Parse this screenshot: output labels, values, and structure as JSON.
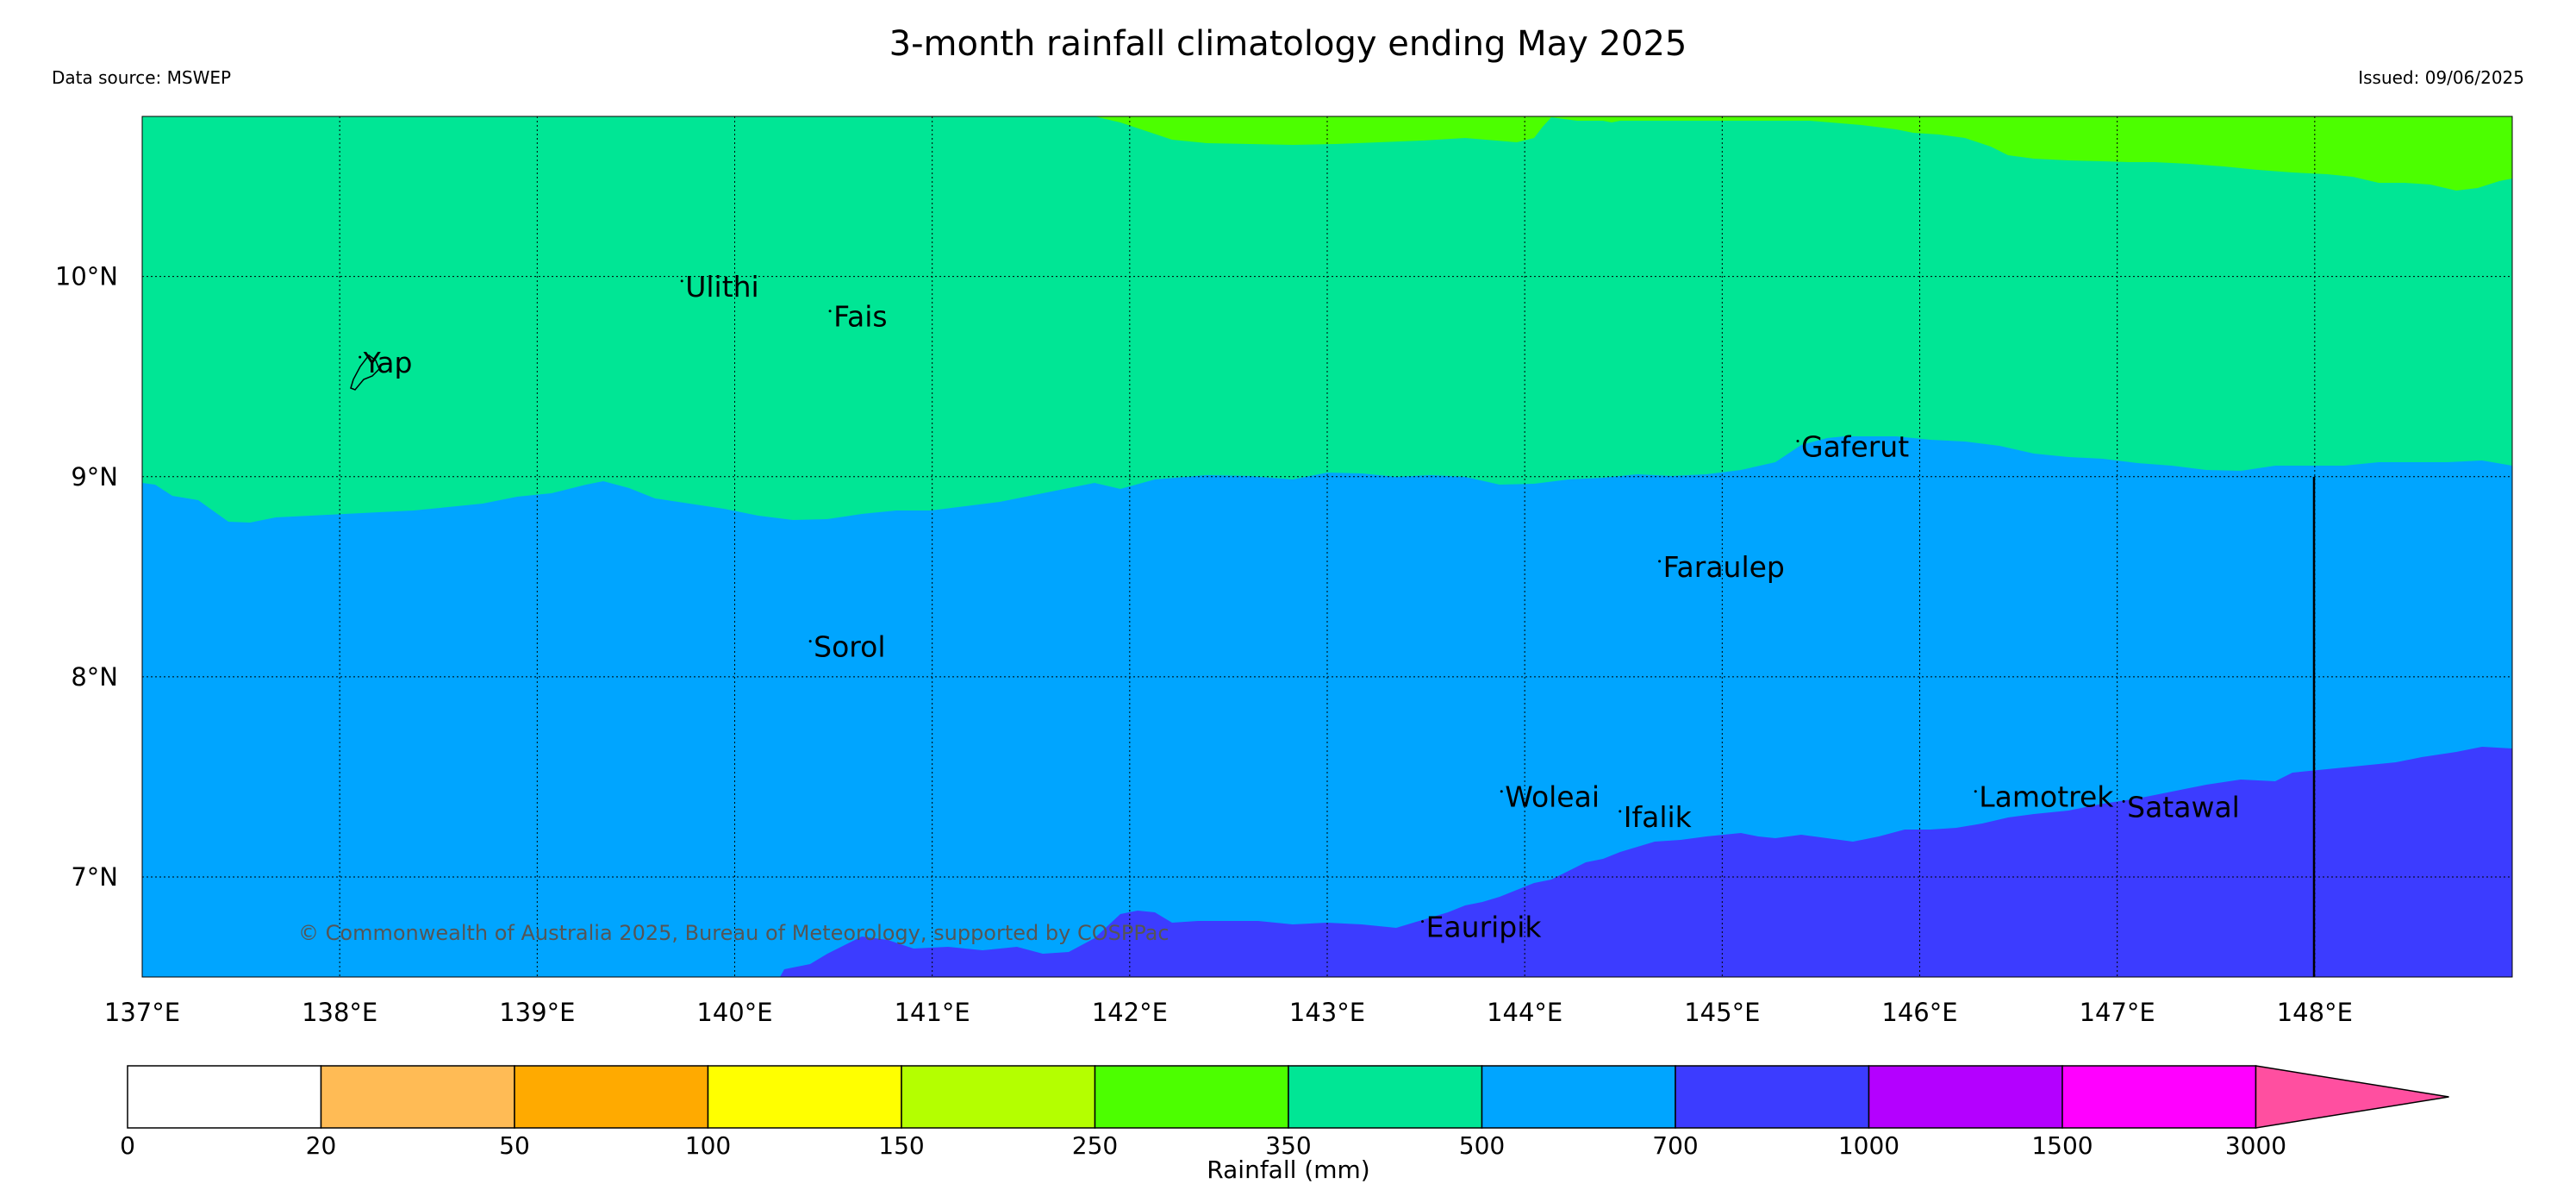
{
  "title": "3-month rainfall climatology ending May 2025",
  "data_source": "Data source: MSWEP",
  "issued": "Issued: 09/06/2025",
  "copyright": "© Commonwealth of Australia 2025, Bureau of Meteorology, supported by COSPPac",
  "map": {
    "lon_range": [
      137,
      149
    ],
    "lat_range": [
      6.5,
      10.8
    ],
    "lon_ticks": [
      "137°E",
      "138°E",
      "139°E",
      "140°E",
      "141°E",
      "142°E",
      "143°E",
      "144°E",
      "145°E",
      "146°E",
      "147°E",
      "148°E"
    ],
    "lat_ticks": [
      "10°N",
      "9°N",
      "8°N",
      "7°N"
    ],
    "colors": {
      "c250_350": "#4cff00",
      "c350_500": "#00e695",
      "c500_700": "#00a5ff",
      "c700_1000": "#3c3cff"
    },
    "places": [
      {
        "name": "Ulithi",
        "lon": 139.75,
        "lat": 9.9
      },
      {
        "name": "Fais",
        "lon": 140.5,
        "lat": 9.75
      },
      {
        "name": "Yap",
        "lon": 138.12,
        "lat": 9.52
      },
      {
        "name": "Gaferut",
        "lon": 145.4,
        "lat": 9.1
      },
      {
        "name": "Faraulep",
        "lon": 144.7,
        "lat": 8.5
      },
      {
        "name": "Sorol",
        "lon": 140.4,
        "lat": 8.1
      },
      {
        "name": "Woleai",
        "lon": 143.9,
        "lat": 7.35
      },
      {
        "name": "Ifalik",
        "lon": 144.5,
        "lat": 7.25
      },
      {
        "name": "Lamotrek",
        "lon": 146.3,
        "lat": 7.35
      },
      {
        "name": "Satawal",
        "lon": 147.05,
        "lat": 7.3
      },
      {
        "name": "Eauripik",
        "lon": 143.5,
        "lat": 6.7
      }
    ]
  },
  "colorbar": {
    "label": "Rainfall (mm)",
    "ticks": [
      "0",
      "20",
      "50",
      "100",
      "150",
      "250",
      "350",
      "500",
      "700",
      "1000",
      "1500",
      "3000"
    ],
    "colors": [
      "#ffffff",
      "#ffbb55",
      "#ffaa00",
      "#ffff00",
      "#b4ff00",
      "#4cff00",
      "#00e695",
      "#00a5ff",
      "#3c3cff",
      "#b400ff",
      "#ff00ff"
    ],
    "extend_color": "#ff4fa0"
  }
}
